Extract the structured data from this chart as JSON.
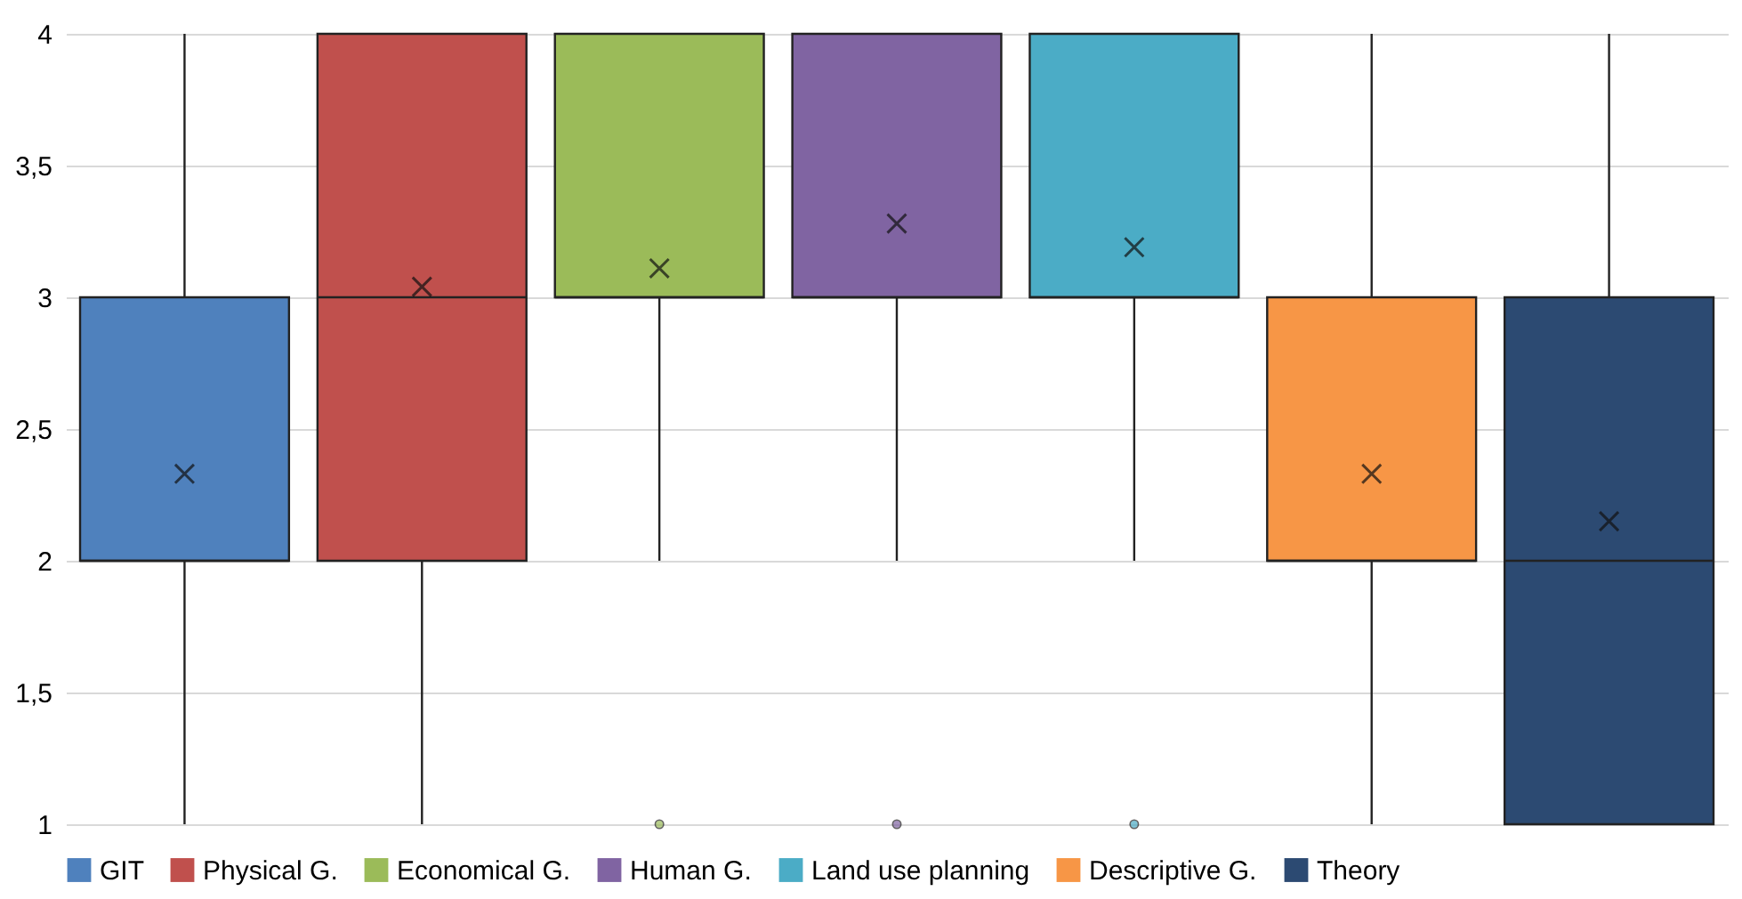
{
  "chart_data": {
    "type": "box",
    "categories": [
      null
    ],
    "series": [
      {
        "name": "GIT",
        "color": "#4f81bd",
        "boxes": [
          {
            "low": 1,
            "q1": 2,
            "median": 2,
            "q3": 3,
            "high": 4,
            "mean": 2.33
          }
        ]
      },
      {
        "name": "Physical G.",
        "color": "#c0504d",
        "boxes": [
          {
            "low": 1,
            "q1": 2,
            "median": 3,
            "q3": 4,
            "high": 4,
            "mean": 3.04
          }
        ]
      },
      {
        "name": "Economical G.",
        "color": "#9bbb59",
        "boxes": [
          {
            "low": 2,
            "q1": 3,
            "median": 3,
            "q3": 4,
            "high": 4,
            "mean": 3.11,
            "outliers": [
              1
            ]
          }
        ]
      },
      {
        "name": "Human G.",
        "color": "#8064a2",
        "boxes": [
          {
            "low": 2,
            "q1": 3,
            "median": 3,
            "q3": 4,
            "high": 4,
            "mean": 3.28,
            "outliers": [
              1
            ]
          }
        ]
      },
      {
        "name": "Land use planning",
        "color": "#4bacc6",
        "boxes": [
          {
            "low": 2,
            "q1": 3,
            "median": 3,
            "q3": 4,
            "high": 4,
            "mean": 3.19,
            "outliers": [
              1
            ]
          }
        ]
      },
      {
        "name": "Descriptive G.",
        "color": "#f79646",
        "boxes": [
          {
            "low": 1,
            "q1": 2,
            "median": 2,
            "q3": 3,
            "high": 4,
            "mean": 2.33
          }
        ]
      },
      {
        "name": "Theory",
        "color": "#2c4a72",
        "boxes": [
          {
            "low": 1,
            "q1": 1,
            "median": 2,
            "q3": 3,
            "high": 4,
            "mean": 2.15
          }
        ]
      }
    ],
    "ylim": [
      1,
      4
    ],
    "yticks": [
      1,
      {
        "value": 1.5,
        "label": "1,5"
      },
      2,
      {
        "value": 2.5,
        "label": "2,5"
      },
      3,
      {
        "value": 3.5,
        "label": "3,5"
      },
      4
    ],
    "grid": "y",
    "legend": "bottom",
    "tick_labels": "y"
  }
}
